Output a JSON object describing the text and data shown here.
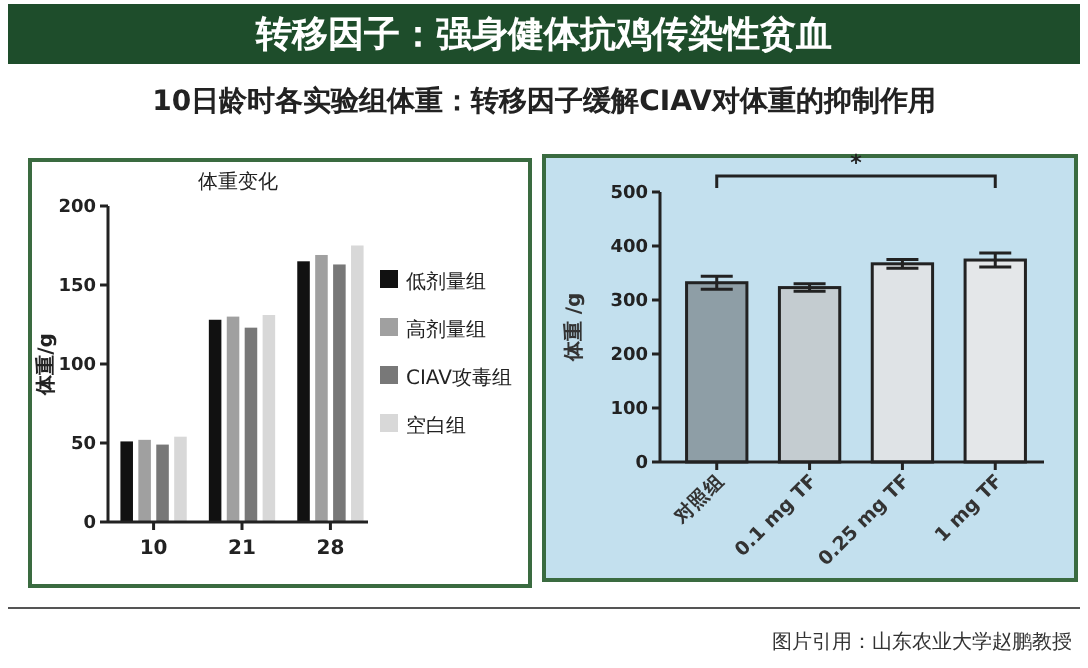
{
  "chart_data": [
    {
      "type": "other",
      "title": "转移因子：强身健体抗鸡传染性贫血",
      "subtitle": "10日龄时各实验组体重：转移因子缓解CIAV对体重的抑制作用",
      "annotations": [
        "图片引用：山东农业大学赵鹏教授"
      ]
    },
    {
      "type": "bar",
      "title": "体重变化",
      "categories": [
        "10",
        "21",
        "28"
      ],
      "ylabel": "体重/g",
      "ylim": [
        0,
        200
      ],
      "yticks": [
        0,
        50,
        100,
        150,
        200
      ],
      "legend": "right",
      "series": [
        {
          "name": "低剂量组",
          "color": "#111111",
          "values": [
            51,
            128,
            165
          ]
        },
        {
          "name": "高剂量组",
          "color": "#a0a0a0",
          "values": [
            52,
            130,
            169
          ]
        },
        {
          "name": "CIAV攻毒组",
          "color": "#787878",
          "values": [
            49,
            123,
            163
          ]
        },
        {
          "name": "空白组",
          "color": "#d8d8d8",
          "values": [
            54,
            131,
            175
          ]
        }
      ]
    },
    {
      "type": "bar",
      "categories": [
        "对照组",
        "0.1 mg TF",
        "0.25 mg TF",
        "1 mg TF"
      ],
      "ylabel": "体重 /g",
      "ylim": [
        0,
        500
      ],
      "yticks": [
        0,
        100,
        200,
        300,
        400,
        500
      ],
      "values": [
        332,
        323,
        367,
        374
      ],
      "errors": [
        12,
        7,
        8,
        13
      ],
      "colors": [
        "#8e9ea6",
        "#c4ccd0",
        "#dfe3e6",
        "#e4e7e9"
      ],
      "annotations": [
        "*"
      ]
    }
  ]
}
